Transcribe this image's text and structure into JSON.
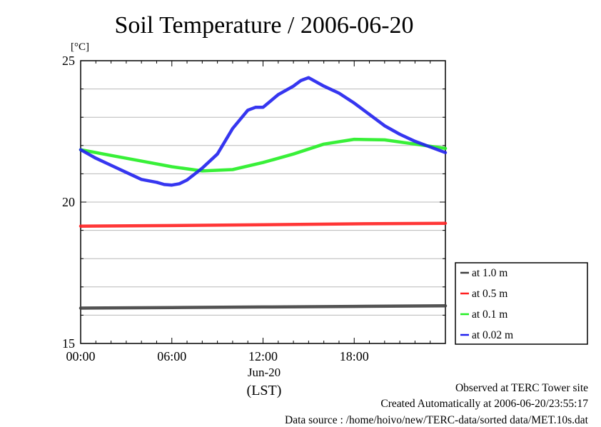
{
  "chart_data": {
    "type": "line",
    "title": "Soil Temperature / 2006-06-20",
    "yunit": "[°C]",
    "ylim": [
      15,
      25
    ],
    "yticks": [
      "15",
      "20",
      "25"
    ],
    "xlim": [
      0,
      24
    ],
    "xticks": [
      "00:00",
      "06:00",
      "12:00",
      "18:00"
    ],
    "xsublabel": "Jun-20",
    "xlabel": "(LST)",
    "grid": true,
    "legend_position": "right",
    "series": [
      {
        "name": "at 1.0 m",
        "color": "#404040",
        "x": [
          0,
          6,
          12,
          18,
          24
        ],
        "y": [
          16.25,
          16.27,
          16.29,
          16.31,
          16.33
        ]
      },
      {
        "name": "at 0.5 m",
        "color": "#ff2020",
        "x": [
          0,
          6,
          12,
          18,
          24
        ],
        "y": [
          19.15,
          19.17,
          19.2,
          19.23,
          19.25
        ]
      },
      {
        "name": "at 0.1 m",
        "color": "#22ee22",
        "x": [
          0,
          2,
          4,
          6,
          8,
          10,
          12,
          14,
          16,
          18,
          20,
          22,
          24
        ],
        "y": [
          21.85,
          21.65,
          21.45,
          21.25,
          21.1,
          21.15,
          21.4,
          21.7,
          22.05,
          22.22,
          22.2,
          22.05,
          21.9
        ]
      },
      {
        "name": "at 0.02 m",
        "color": "#2020ee",
        "x": [
          0,
          1,
          2,
          3,
          4,
          4.5,
          5,
          5.5,
          6,
          6.5,
          7,
          8,
          9,
          10,
          11,
          11.5,
          12,
          13,
          14,
          14.5,
          15,
          16,
          17,
          18,
          19,
          20,
          21,
          22,
          23,
          24
        ],
        "y": [
          21.85,
          21.55,
          21.3,
          21.05,
          20.8,
          20.75,
          20.7,
          20.62,
          20.6,
          20.65,
          20.78,
          21.2,
          21.7,
          22.6,
          23.25,
          23.35,
          23.35,
          23.8,
          24.1,
          24.3,
          24.4,
          24.1,
          23.85,
          23.5,
          23.1,
          22.7,
          22.4,
          22.15,
          21.95,
          21.75
        ]
      }
    ]
  },
  "footer": {
    "observed": "Observed at TERC Tower site",
    "created": "Created Automatically at 2006-06-20/23:55:17",
    "source": "Data source : /home/hoivo/new/TERC-data/sorted  data/MET.10s.dat"
  }
}
